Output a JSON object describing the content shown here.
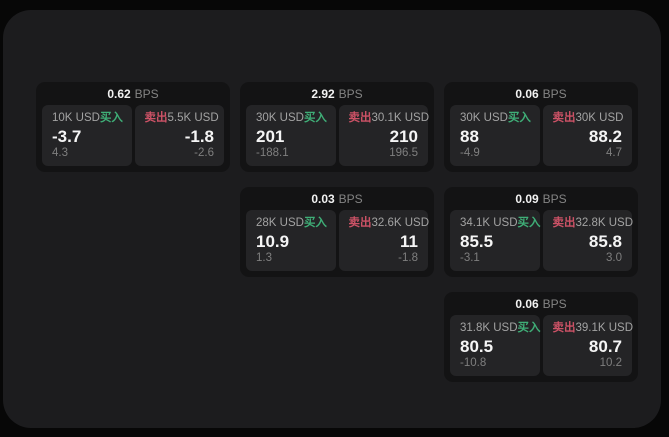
{
  "ui": {
    "bps_unit": "BPS",
    "buy_label": "买入",
    "sell_label": "卖出"
  },
  "colors": {
    "buy_green": "#3fae77",
    "sell_red": "#cc5266",
    "panel_bg": "#1c1c1e",
    "card_bg": "#131314",
    "subpanel_bg": "#242426"
  },
  "cards": [
    {
      "col": 1,
      "row": 1,
      "bps": "0.62",
      "buy": {
        "amount": "10K USD",
        "price": "-3.7",
        "delta": "4.3"
      },
      "sell": {
        "amount": "5.5K USD",
        "price": "-1.8",
        "delta": "-2.6"
      }
    },
    {
      "col": 2,
      "row": 1,
      "bps": "2.92",
      "buy": {
        "amount": "30K USD",
        "price": "201",
        "delta": "-188.1"
      },
      "sell": {
        "amount": "30.1K USD",
        "price": "210",
        "delta": "196.5"
      }
    },
    {
      "col": 3,
      "row": 1,
      "bps": "0.06",
      "buy": {
        "amount": "30K USD",
        "price": "88",
        "delta": "-4.9"
      },
      "sell": {
        "amount": "30K USD",
        "price": "88.2",
        "delta": "4.7"
      }
    },
    {
      "col": 2,
      "row": 2,
      "bps": "0.03",
      "buy": {
        "amount": "28K USD",
        "price": "10.9",
        "delta": "1.3"
      },
      "sell": {
        "amount": "32.6K USD",
        "price": "11",
        "delta": "-1.8"
      }
    },
    {
      "col": 3,
      "row": 2,
      "bps": "0.09",
      "buy": {
        "amount": "34.1K USD",
        "price": "85.5",
        "delta": "-3.1"
      },
      "sell": {
        "amount": "32.8K USD",
        "price": "85.8",
        "delta": "3.0"
      }
    },
    {
      "col": 3,
      "row": 3,
      "bps": "0.06",
      "buy": {
        "amount": "31.8K USD",
        "price": "80.5",
        "delta": "-10.8"
      },
      "sell": {
        "amount": "39.1K USD",
        "price": "80.7",
        "delta": "10.2"
      }
    }
  ]
}
